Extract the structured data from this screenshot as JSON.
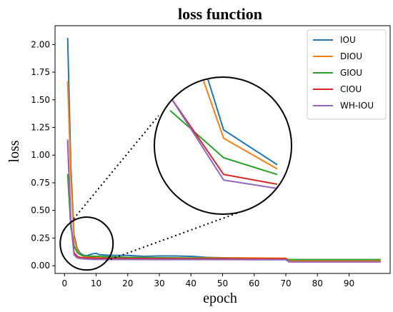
{
  "chart_data": {
    "type": "line",
    "title": "loss function",
    "xlabel": "epoch",
    "ylabel": "loss",
    "xlim": [
      -3,
      103
    ],
    "ylim": [
      -0.07,
      2.17
    ],
    "xticks": [
      0,
      10,
      20,
      30,
      40,
      50,
      60,
      70,
      80,
      90
    ],
    "yticks": [
      0.0,
      0.25,
      0.5,
      0.75,
      1.0,
      1.25,
      1.5,
      1.75,
      2.0
    ],
    "ytick_labels": [
      "0.00",
      "0.25",
      "0.50",
      "0.75",
      "1.00",
      "1.25",
      "1.50",
      "1.75",
      "2.00"
    ],
    "grid": false,
    "legend_position": "top-right",
    "series": [
      {
        "name": "IOU",
        "color": "#1f77b4",
        "points": [
          [
            1,
            2.06
          ],
          [
            2,
            0.9
          ],
          [
            3,
            0.28
          ],
          [
            4,
            0.155
          ],
          [
            5,
            0.112
          ],
          [
            6,
            0.095
          ],
          [
            7,
            0.09
          ],
          [
            8,
            0.1
          ],
          [
            9,
            0.108
          ],
          [
            10,
            0.112
          ],
          [
            11,
            0.1
          ],
          [
            12,
            0.098
          ],
          [
            14,
            0.095
          ],
          [
            20,
            0.093
          ],
          [
            25,
            0.085
          ],
          [
            30,
            0.088
          ],
          [
            35,
            0.088
          ],
          [
            40,
            0.085
          ],
          [
            45,
            0.075
          ],
          [
            50,
            0.072
          ],
          [
            55,
            0.07
          ],
          [
            60,
            0.068
          ],
          [
            65,
            0.066
          ],
          [
            70,
            0.062
          ],
          [
            71,
            0.05
          ],
          [
            80,
            0.05
          ],
          [
            90,
            0.05
          ],
          [
            100,
            0.05
          ]
        ]
      },
      {
        "name": "DIOU",
        "color": "#ff7f0e",
        "points": [
          [
            1,
            1.67
          ],
          [
            2,
            0.8
          ],
          [
            3,
            0.25
          ],
          [
            4,
            0.14
          ],
          [
            5,
            0.1
          ],
          [
            6,
            0.086
          ],
          [
            7,
            0.082
          ],
          [
            8,
            0.082
          ],
          [
            10,
            0.08
          ],
          [
            20,
            0.075
          ],
          [
            30,
            0.072
          ],
          [
            40,
            0.07
          ],
          [
            50,
            0.07
          ],
          [
            60,
            0.07
          ],
          [
            70,
            0.068
          ],
          [
            71,
            0.045
          ],
          [
            80,
            0.045
          ],
          [
            90,
            0.045
          ],
          [
            100,
            0.045
          ]
        ]
      },
      {
        "name": "GIOU",
        "color": "#2ca02c",
        "points": [
          [
            1,
            0.83
          ],
          [
            2,
            0.35
          ],
          [
            3,
            0.18
          ],
          [
            4,
            0.12
          ],
          [
            5,
            0.1
          ],
          [
            6,
            0.09
          ],
          [
            7,
            0.088
          ],
          [
            8,
            0.087
          ],
          [
            10,
            0.085
          ],
          [
            20,
            0.075
          ],
          [
            30,
            0.07
          ],
          [
            40,
            0.068
          ],
          [
            50,
            0.065
          ],
          [
            60,
            0.062
          ],
          [
            70,
            0.06
          ],
          [
            71,
            0.055
          ],
          [
            80,
            0.055
          ],
          [
            90,
            0.055
          ],
          [
            100,
            0.055
          ]
        ]
      },
      {
        "name": "CIOU",
        "color": "#d62728",
        "points": [
          [
            1,
            1.12
          ],
          [
            2,
            0.4
          ],
          [
            3,
            0.12
          ],
          [
            4,
            0.085
          ],
          [
            5,
            0.075
          ],
          [
            6,
            0.072
          ],
          [
            7,
            0.07
          ],
          [
            8,
            0.07
          ],
          [
            10,
            0.068
          ],
          [
            20,
            0.066
          ],
          [
            30,
            0.064
          ],
          [
            40,
            0.063
          ],
          [
            50,
            0.062
          ],
          [
            60,
            0.062
          ],
          [
            70,
            0.062
          ],
          [
            71,
            0.035
          ],
          [
            80,
            0.035
          ],
          [
            90,
            0.035
          ],
          [
            100,
            0.035
          ]
        ]
      },
      {
        "name": "WH-IOU",
        "color": "#9467bd",
        "points": [
          [
            1,
            1.14
          ],
          [
            2,
            0.4
          ],
          [
            3,
            0.1
          ],
          [
            4,
            0.07
          ],
          [
            5,
            0.065
          ],
          [
            6,
            0.062
          ],
          [
            7,
            0.06
          ],
          [
            8,
            0.058
          ],
          [
            10,
            0.057
          ],
          [
            20,
            0.056
          ],
          [
            30,
            0.055
          ],
          [
            40,
            0.055
          ],
          [
            50,
            0.055
          ],
          [
            60,
            0.054
          ],
          [
            70,
            0.054
          ],
          [
            71,
            0.035
          ],
          [
            80,
            0.035
          ],
          [
            90,
            0.035
          ],
          [
            100,
            0.035
          ]
        ]
      }
    ],
    "zoom_inset": {
      "source_circle": {
        "x": 7,
        "y": 0.2
      },
      "description_free": true
    }
  }
}
